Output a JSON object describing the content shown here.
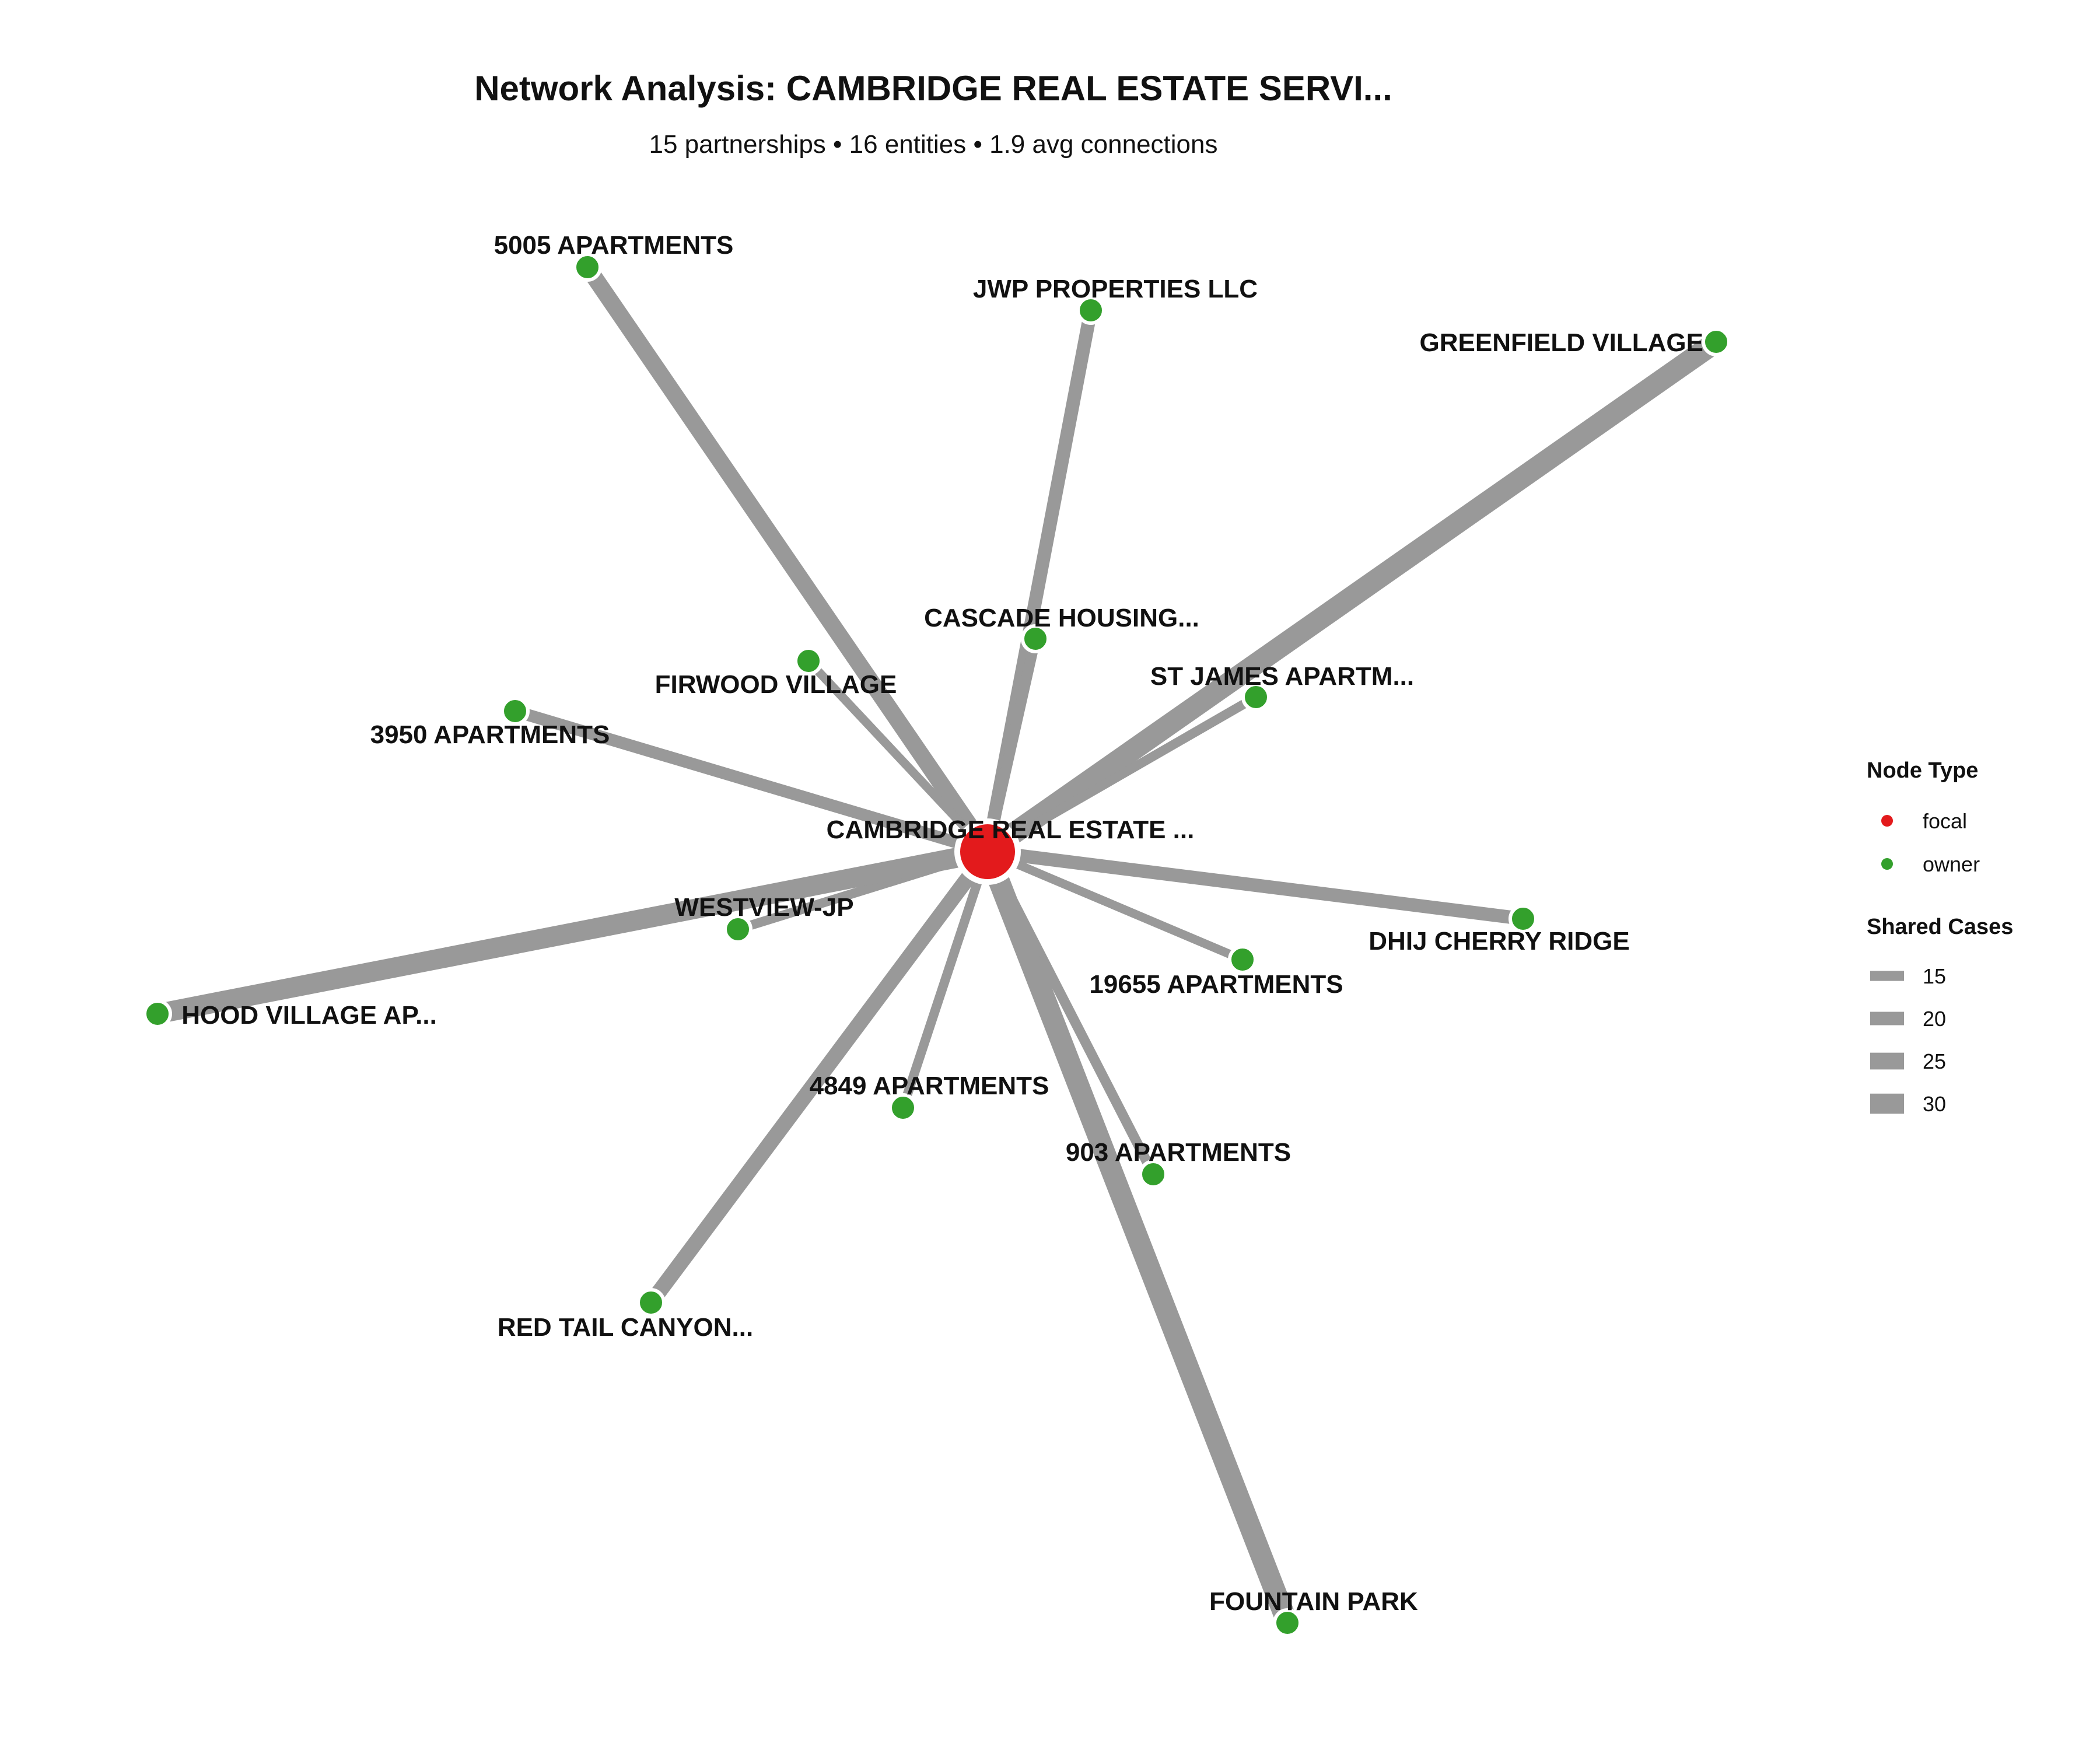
{
  "title": "Network Analysis: CAMBRIDGE REAL ESTATE SERVI...",
  "subtitle": "15 partnerships • 16 entities • 1.9 avg connections",
  "colors": {
    "focal": "#e31a1c",
    "owner": "#33a02c",
    "edge": "#999999"
  },
  "focal": {
    "label": "CAMBRIDGE REAL ESTATE ...",
    "type": "focal"
  },
  "nodes": [
    {
      "label": "5005 APARTMENTS",
      "type": "owner",
      "shared_cases": 25
    },
    {
      "label": "JWP PROPERTIES LLC",
      "type": "owner",
      "shared_cases": 20
    },
    {
      "label": "GREENFIELD VILLAGE",
      "type": "owner",
      "shared_cases": 32
    },
    {
      "label": "CASCADE HOUSING...",
      "type": "owner",
      "shared_cases": 16
    },
    {
      "label": "FIRWOOD VILLAGE",
      "type": "owner",
      "shared_cases": 13
    },
    {
      "label": "ST JAMES APARTM...",
      "type": "owner",
      "shared_cases": 14
    },
    {
      "label": "3950 APARTMENTS",
      "type": "owner",
      "shared_cases": 18
    },
    {
      "label": "WESTVIEW-JP",
      "type": "owner",
      "shared_cases": 14
    },
    {
      "label": "DHIJ CHERRY RIDGE",
      "type": "owner",
      "shared_cases": 20
    },
    {
      "label": "HOOD VILLAGE AP...",
      "type": "owner",
      "shared_cases": 30
    },
    {
      "label": "19655 APARTMENTS",
      "type": "owner",
      "shared_cases": 13
    },
    {
      "label": "4849 APARTMENTS",
      "type": "owner",
      "shared_cases": 14
    },
    {
      "label": "903 APARTMENTS",
      "type": "owner",
      "shared_cases": 15
    },
    {
      "label": "RED TAIL CANYON...",
      "type": "owner",
      "shared_cases": 23
    },
    {
      "label": "FOUNTAIN PARK",
      "type": "owner",
      "shared_cases": 32
    }
  ],
  "legend": {
    "node_type_title": "Node Type",
    "node_types": [
      "focal",
      "owner"
    ],
    "shared_cases_title": "Shared Cases",
    "shared_cases": [
      15,
      20,
      25,
      30
    ]
  }
}
